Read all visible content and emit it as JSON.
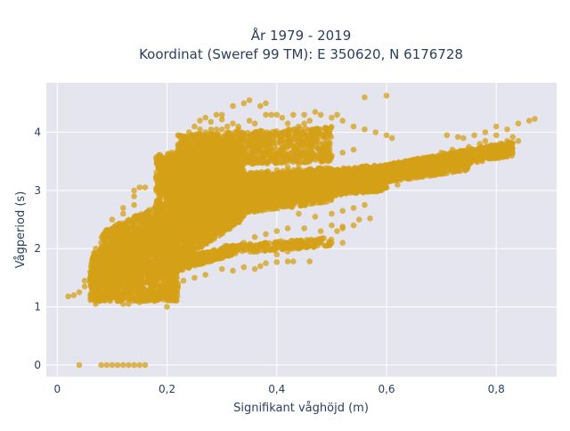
{
  "chart_data": {
    "type": "scatter",
    "title_line1": "År 1979 - 2019",
    "title_line2": "Koordinat (Sweref 99 TM): E 350620, N 6176728",
    "xlabel": "Signifikant våghöjd (m)",
    "ylabel": "Vågperiod (s)",
    "xlim": [
      -0.02,
      0.91
    ],
    "ylim": [
      -0.2,
      4.85
    ],
    "xticks": [
      0,
      0.2,
      0.4,
      0.6,
      0.8
    ],
    "xtick_labels": [
      "0",
      "0,2",
      "0,4",
      "0,6",
      "0,8"
    ],
    "yticks": [
      0,
      1,
      2,
      3,
      4
    ],
    "ytick_labels": [
      "0",
      "1",
      "2",
      "3",
      "4"
    ],
    "grid": true,
    "legend": "none",
    "marker_color": "#D4A017",
    "plot_bg": "#E5E5F0",
    "points": [
      [
        0.04,
        0.0
      ],
      [
        0.08,
        0.0
      ],
      [
        0.09,
        0.0
      ],
      [
        0.1,
        0.0
      ],
      [
        0.11,
        0.0
      ],
      [
        0.12,
        0.0
      ],
      [
        0.13,
        0.0
      ],
      [
        0.14,
        0.0
      ],
      [
        0.15,
        0.0
      ],
      [
        0.16,
        0.0
      ],
      [
        0.02,
        1.18
      ],
      [
        0.03,
        1.2
      ],
      [
        0.04,
        1.25
      ],
      [
        0.05,
        1.35
      ],
      [
        0.06,
        1.5
      ],
      [
        0.07,
        1.05
      ],
      [
        0.06,
        1.6
      ],
      [
        0.07,
        1.75
      ],
      [
        0.12,
        1.05
      ],
      [
        0.15,
        1.08
      ],
      [
        0.18,
        1.12
      ],
      [
        0.2,
        1.25
      ],
      [
        0.22,
        1.4
      ],
      [
        0.08,
        2.1
      ],
      [
        0.1,
        2.25
      ],
      [
        0.12,
        2.35
      ],
      [
        0.14,
        2.45
      ],
      [
        0.16,
        2.55
      ],
      [
        0.18,
        2.7
      ],
      [
        0.2,
        2.85
      ],
      [
        0.12,
        2.6
      ],
      [
        0.14,
        2.75
      ],
      [
        0.14,
        3.0
      ],
      [
        0.15,
        3.05
      ],
      [
        0.16,
        2.6
      ],
      [
        0.18,
        2.6
      ],
      [
        0.18,
        3.2
      ],
      [
        0.19,
        3.4
      ],
      [
        0.2,
        3.55
      ],
      [
        0.21,
        3.6
      ],
      [
        0.22,
        3.7
      ],
      [
        0.23,
        3.85
      ],
      [
        0.24,
        3.9
      ],
      [
        0.25,
        3.95
      ],
      [
        0.26,
        4.05
      ],
      [
        0.25,
        4.1
      ],
      [
        0.28,
        4.05
      ],
      [
        0.3,
        4.05
      ],
      [
        0.31,
        4.1
      ],
      [
        0.32,
        4.15
      ],
      [
        0.33,
        4.1
      ],
      [
        0.35,
        4.2
      ],
      [
        0.36,
        4.15
      ],
      [
        0.29,
        4.3
      ],
      [
        0.3,
        4.3
      ],
      [
        0.32,
        4.45
      ],
      [
        0.34,
        4.5
      ],
      [
        0.35,
        4.55
      ],
      [
        0.37,
        4.45
      ],
      [
        0.38,
        4.3
      ],
      [
        0.38,
        4.5
      ],
      [
        0.39,
        4.3
      ],
      [
        0.4,
        4.3
      ],
      [
        0.41,
        4.25
      ],
      [
        0.42,
        4.15
      ],
      [
        0.43,
        4.05
      ],
      [
        0.44,
        4.1
      ],
      [
        0.45,
        4.15
      ],
      [
        0.43,
        4.3
      ],
      [
        0.45,
        4.3
      ],
      [
        0.46,
        4.2
      ],
      [
        0.47,
        4.35
      ],
      [
        0.48,
        4.3
      ],
      [
        0.5,
        4.25
      ],
      [
        0.51,
        4.3
      ],
      [
        0.52,
        4.2
      ],
      [
        0.54,
        4.1
      ],
      [
        0.56,
        4.05
      ],
      [
        0.58,
        4.0
      ],
      [
        0.6,
        3.95
      ],
      [
        0.61,
        3.9
      ],
      [
        0.56,
        4.6
      ],
      [
        0.6,
        4.63
      ],
      [
        0.84,
        4.15
      ],
      [
        0.86,
        4.2
      ],
      [
        0.87,
        4.23
      ],
      [
        0.8,
        4.1
      ],
      [
        0.82,
        4.05
      ],
      [
        0.78,
        4.0
      ],
      [
        0.76,
        3.95
      ],
      [
        0.71,
        3.95
      ],
      [
        0.73,
        3.92
      ],
      [
        0.74,
        3.9
      ],
      [
        0.82,
        3.85
      ],
      [
        0.83,
        3.92
      ],
      [
        0.78,
        3.85
      ],
      [
        0.8,
        3.95
      ],
      [
        0.2,
        1.0
      ],
      [
        0.17,
        1.35
      ],
      [
        0.24,
        1.7
      ],
      [
        0.26,
        1.75
      ],
      [
        0.28,
        1.9
      ],
      [
        0.3,
        1.95
      ],
      [
        0.32,
        2.05
      ],
      [
        0.34,
        2.1
      ],
      [
        0.36,
        2.2
      ],
      [
        0.38,
        2.25
      ],
      [
        0.4,
        2.3
      ],
      [
        0.42,
        2.35
      ],
      [
        0.45,
        2.35
      ],
      [
        0.5,
        2.4
      ],
      [
        0.48,
        2.3
      ],
      [
        0.4,
        1.9
      ],
      [
        0.42,
        1.95
      ],
      [
        0.44,
        2.0
      ],
      [
        0.46,
        2.05
      ],
      [
        0.49,
        2.05
      ],
      [
        0.5,
        2.1
      ],
      [
        0.52,
        2.1
      ],
      [
        0.37,
        1.7
      ],
      [
        0.38,
        1.75
      ],
      [
        0.4,
        1.77
      ],
      [
        0.42,
        1.78
      ],
      [
        0.43,
        1.78
      ],
      [
        0.46,
        1.78
      ],
      [
        0.3,
        1.65
      ],
      [
        0.32,
        1.62
      ],
      [
        0.34,
        1.68
      ],
      [
        0.36,
        1.65
      ],
      [
        0.51,
        2.3
      ],
      [
        0.52,
        2.35
      ],
      [
        0.52,
        2.38
      ],
      [
        0.54,
        2.4
      ],
      [
        0.55,
        2.5
      ],
      [
        0.57,
        2.52
      ],
      [
        0.44,
        2.6
      ],
      [
        0.47,
        2.55
      ],
      [
        0.5,
        2.6
      ],
      [
        0.52,
        2.65
      ],
      [
        0.54,
        2.7
      ],
      [
        0.56,
        2.75
      ],
      [
        0.6,
        3.05
      ],
      [
        0.62,
        3.1
      ],
      [
        0.64,
        3.2
      ],
      [
        0.66,
        3.25
      ],
      [
        0.68,
        3.3
      ],
      [
        0.7,
        3.4
      ],
      [
        0.72,
        3.45
      ],
      [
        0.74,
        3.5
      ],
      [
        0.76,
        3.55
      ],
      [
        0.78,
        3.6
      ],
      [
        0.8,
        3.7
      ],
      [
        0.82,
        3.78
      ],
      [
        0.84,
        3.85
      ],
      [
        0.65,
        3.5
      ],
      [
        0.67,
        3.55
      ],
      [
        0.7,
        3.65
      ],
      [
        0.72,
        3.7
      ],
      [
        0.75,
        3.75
      ],
      [
        0.77,
        3.8
      ],
      [
        0.28,
        3.3
      ],
      [
        0.3,
        3.35
      ],
      [
        0.32,
        3.4
      ],
      [
        0.34,
        3.3
      ],
      [
        0.36,
        3.25
      ],
      [
        0.38,
        3.3
      ],
      [
        0.4,
        3.35
      ],
      [
        0.42,
        3.4
      ],
      [
        0.44,
        3.45
      ],
      [
        0.46,
        3.5
      ],
      [
        0.48,
        3.55
      ],
      [
        0.5,
        3.6
      ],
      [
        0.52,
        3.65
      ],
      [
        0.54,
        3.7
      ],
      [
        0.3,
        3.6
      ],
      [
        0.32,
        3.65
      ],
      [
        0.34,
        3.65
      ],
      [
        0.36,
        3.7
      ],
      [
        0.38,
        3.7
      ],
      [
        0.4,
        3.7
      ],
      [
        0.43,
        3.68
      ],
      [
        0.45,
        3.67
      ],
      [
        0.22,
        3.95
      ],
      [
        0.24,
        4.0
      ],
      [
        0.27,
        4.0
      ],
      [
        0.29,
        4.05
      ],
      [
        0.31,
        4.0
      ],
      [
        0.33,
        4.05
      ],
      [
        0.26,
        4.2
      ],
      [
        0.27,
        4.25
      ],
      [
        0.28,
        4.18
      ],
      [
        0.3,
        4.22
      ],
      [
        0.1,
        2.5
      ],
      [
        0.12,
        2.7
      ],
      [
        0.14,
        2.9
      ],
      [
        0.16,
        3.05
      ],
      [
        0.18,
        3.0
      ],
      [
        0.19,
        3.1
      ],
      [
        0.15,
        1.15
      ],
      [
        0.18,
        1.2
      ],
      [
        0.21,
        1.3
      ],
      [
        0.23,
        1.45
      ],
      [
        0.25,
        1.5
      ],
      [
        0.27,
        1.55
      ],
      [
        0.05,
        1.45
      ],
      [
        0.06,
        1.42
      ],
      [
        0.07,
        1.3
      ],
      [
        0.09,
        1.15
      ],
      [
        0.08,
        1.4
      ],
      [
        0.09,
        1.7
      ],
      [
        0.08,
        1.9
      ],
      [
        0.07,
        2.0
      ],
      [
        0.11,
        1.1
      ],
      [
        0.13,
        1.05
      ]
    ],
    "bands": [
      {
        "x0": 0.06,
        "x1": 0.22,
        "ylo0": 1.1,
        "ylo1": 1.1,
        "yhi0": 1.9,
        "yhi1": 2.6,
        "n": 1500
      },
      {
        "x0": 0.08,
        "x1": 0.2,
        "ylo0": 1.4,
        "ylo1": 2.0,
        "yhi0": 2.3,
        "yhi1": 2.8,
        "n": 700
      },
      {
        "x0": 0.18,
        "x1": 0.34,
        "ylo0": 1.5,
        "ylo1": 2.5,
        "yhi0": 3.6,
        "yhi1": 3.9,
        "n": 2200
      },
      {
        "x0": 0.2,
        "x1": 0.3,
        "ylo0": 2.0,
        "ylo1": 2.6,
        "yhi0": 3.5,
        "yhi1": 4.0,
        "n": 900
      },
      {
        "x0": 0.22,
        "x1": 0.5,
        "ylo0": 3.4,
        "ylo1": 3.5,
        "yhi0": 3.95,
        "yhi1": 4.1,
        "n": 900
      },
      {
        "x0": 0.25,
        "x1": 0.5,
        "ylo0": 2.5,
        "ylo1": 2.8,
        "yhi0": 3.25,
        "yhi1": 3.4,
        "n": 1000
      },
      {
        "x0": 0.28,
        "x1": 0.45,
        "ylo0": 2.55,
        "ylo1": 2.8,
        "yhi0": 3.1,
        "yhi1": 3.3,
        "n": 600
      },
      {
        "x0": 0.35,
        "x1": 0.6,
        "ylo0": 2.75,
        "ylo1": 3.0,
        "yhi0": 3.25,
        "yhi1": 3.45,
        "n": 1100
      },
      {
        "x0": 0.5,
        "x1": 0.75,
        "ylo0": 3.0,
        "ylo1": 3.35,
        "yhi0": 3.3,
        "yhi1": 3.65,
        "n": 900
      },
      {
        "x0": 0.6,
        "x1": 0.83,
        "ylo0": 3.2,
        "ylo1": 3.6,
        "yhi0": 3.45,
        "yhi1": 3.85,
        "n": 700
      },
      {
        "x0": 0.2,
        "x1": 0.32,
        "ylo0": 1.55,
        "ylo1": 1.9,
        "yhi0": 1.8,
        "yhi1": 2.05,
        "n": 400
      },
      {
        "x0": 0.3,
        "x1": 0.5,
        "ylo0": 1.9,
        "ylo1": 2.05,
        "yhi0": 2.05,
        "yhi1": 2.2,
        "n": 200
      }
    ]
  }
}
